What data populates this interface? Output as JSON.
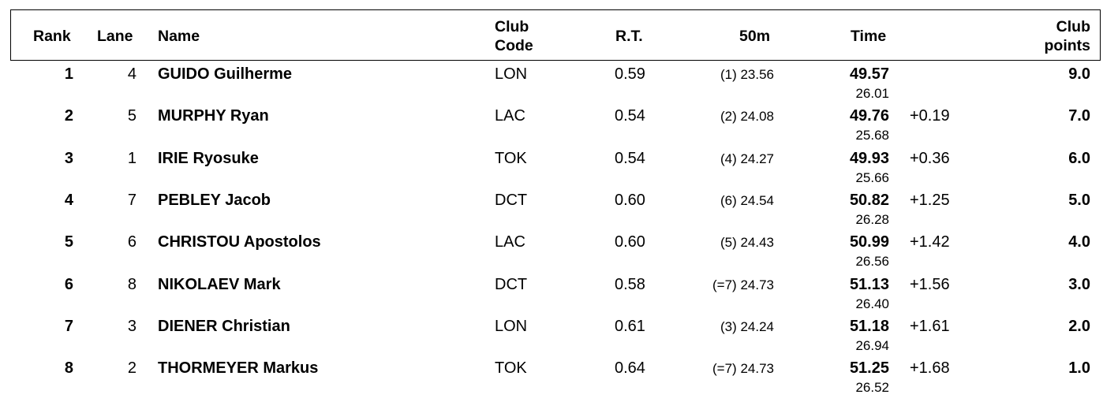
{
  "header": {
    "rank": "Rank",
    "lane": "Lane",
    "name": "Name",
    "club_code_1": "Club",
    "club_code_2": "Code",
    "rt": "R.T.",
    "split": "50m",
    "time": "Time",
    "club_points_1": "Club",
    "club_points_2": "points"
  },
  "rows": [
    {
      "rank": "1",
      "lane": "4",
      "name": "GUIDO Guilherme",
      "club": "LON",
      "rt": "0.59",
      "split": "(1) 23.56",
      "time": "49.57",
      "split2": "26.01",
      "diff": "",
      "points": "9.0"
    },
    {
      "rank": "2",
      "lane": "5",
      "name": "MURPHY Ryan",
      "club": "LAC",
      "rt": "0.54",
      "split": "(2) 24.08",
      "time": "49.76",
      "split2": "25.68",
      "diff": "+0.19",
      "points": "7.0"
    },
    {
      "rank": "3",
      "lane": "1",
      "name": "IRIE Ryosuke",
      "club": "TOK",
      "rt": "0.54",
      "split": "(4) 24.27",
      "time": "49.93",
      "split2": "25.66",
      "diff": "+0.36",
      "points": "6.0"
    },
    {
      "rank": "4",
      "lane": "7",
      "name": "PEBLEY Jacob",
      "club": "DCT",
      "rt": "0.60",
      "split": "(6) 24.54",
      "time": "50.82",
      "split2": "26.28",
      "diff": "+1.25",
      "points": "5.0"
    },
    {
      "rank": "5",
      "lane": "6",
      "name": "CHRISTOU Apostolos",
      "club": "LAC",
      "rt": "0.60",
      "split": "(5) 24.43",
      "time": "50.99",
      "split2": "26.56",
      "diff": "+1.42",
      "points": "4.0"
    },
    {
      "rank": "6",
      "lane": "8",
      "name": "NIKOLAEV Mark",
      "club": "DCT",
      "rt": "0.58",
      "split": "(=7) 24.73",
      "time": "51.13",
      "split2": "26.40",
      "diff": "+1.56",
      "points": "3.0"
    },
    {
      "rank": "7",
      "lane": "3",
      "name": "DIENER Christian",
      "club": "LON",
      "rt": "0.61",
      "split": "(3) 24.24",
      "time": "51.18",
      "split2": "26.94",
      "diff": "+1.61",
      "points": "2.0"
    },
    {
      "rank": "8",
      "lane": "2",
      "name": "THORMEYER Markus",
      "club": "TOK",
      "rt": "0.64",
      "split": "(=7) 24.73",
      "time": "51.25",
      "split2": "26.52",
      "diff": "+1.68",
      "points": "1.0"
    }
  ]
}
